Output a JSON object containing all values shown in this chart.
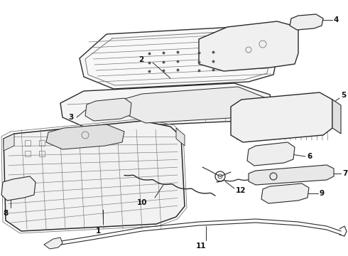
{
  "bg_color": "#ffffff",
  "line_color": "#2a2a2a",
  "grid_color": "#777777",
  "label_color": "#111111",
  "figsize": [
    4.9,
    3.6
  ],
  "dpi": 100
}
